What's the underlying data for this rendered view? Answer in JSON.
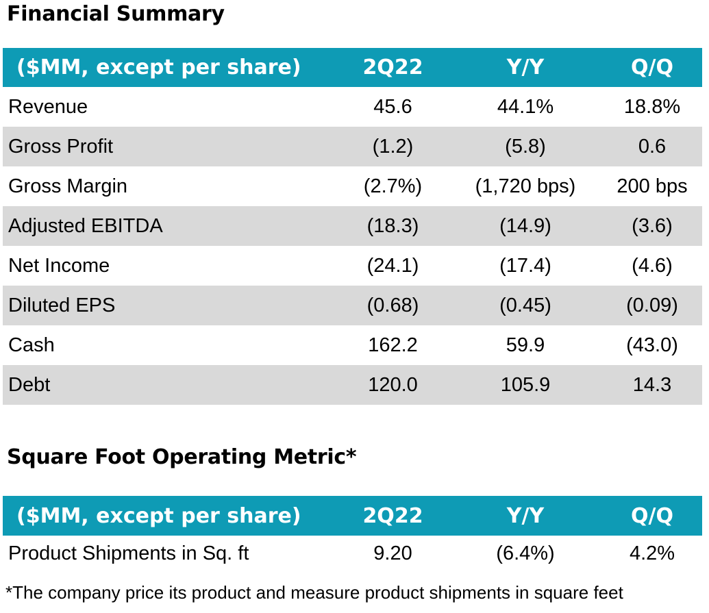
{
  "financial_summary": {
    "title": "Financial Summary",
    "header": [
      "($MM, except per share)",
      "2Q22",
      "Y/Y",
      "Q/Q"
    ],
    "rows": [
      [
        "Revenue",
        "45.6",
        "44.1%",
        "18.8%"
      ],
      [
        "Gross Profit",
        "(1.2)",
        "(5.8)",
        "0.6"
      ],
      [
        "Gross Margin",
        "(2.7%)",
        "(1,720 bps)",
        "200 bps"
      ],
      [
        "Adjusted EBITDA",
        "(18.3)",
        "(14.9)",
        "(3.6)"
      ],
      [
        "Net Income",
        "(24.1)",
        "(17.4)",
        "(4.6)"
      ],
      [
        "Diluted EPS",
        "(0.68)",
        "(0.45)",
        "(0.09)"
      ],
      [
        "Cash",
        "162.2",
        "59.9",
        "(43.0)"
      ],
      [
        "Debt",
        "120.0",
        "105.9",
        "14.3"
      ]
    ]
  },
  "square_foot_metric": {
    "title": "Square Foot Operating Metric*",
    "header": [
      "($MM, except per share)",
      "2Q22",
      "Y/Y",
      "Q/Q"
    ],
    "rows": [
      [
        "Product Shipments in Sq. ft",
        "9.20",
        "(6.4%)",
        "4.2%"
      ]
    ]
  },
  "footnote": "*The company price its product and measure product shipments in square feet",
  "colors": {
    "header_bg": "#0e9bb5",
    "header_text": "#ffffff",
    "stripe_bg": "#d9d9d9"
  }
}
